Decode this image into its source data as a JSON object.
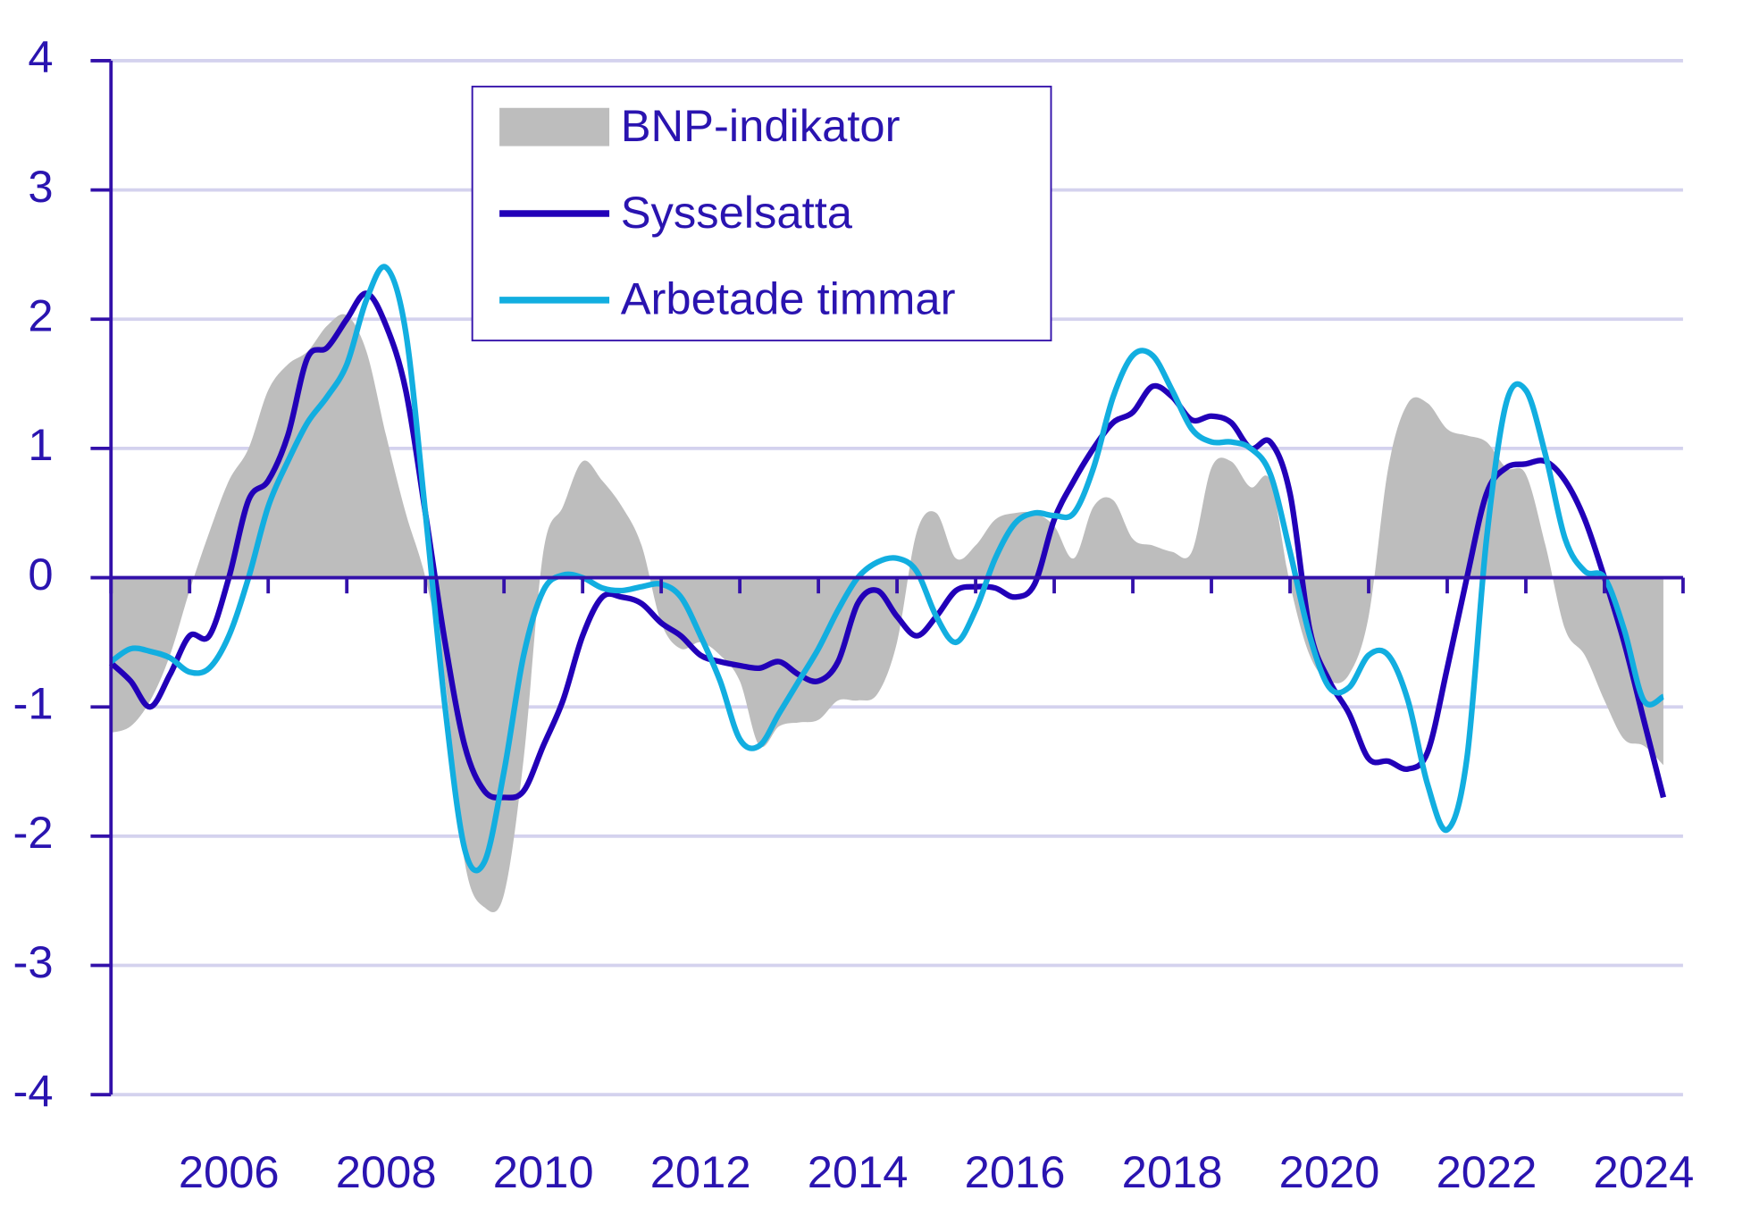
{
  "chart_data": {
    "type": "line",
    "x": [
      2005,
      2005.25,
      2005.5,
      2005.75,
      2006,
      2006.25,
      2006.5,
      2006.75,
      2007,
      2007.25,
      2007.5,
      2007.75,
      2008,
      2008.25,
      2008.5,
      2008.75,
      2009,
      2009.25,
      2009.5,
      2009.75,
      2010,
      2010.25,
      2010.5,
      2010.75,
      2011,
      2011.25,
      2011.5,
      2011.75,
      2012,
      2012.25,
      2012.5,
      2012.75,
      2013,
      2013.25,
      2013.5,
      2013.75,
      2014,
      2014.25,
      2014.5,
      2014.75,
      2015,
      2015.25,
      2015.5,
      2015.75,
      2016,
      2016.25,
      2016.5,
      2016.75,
      2017,
      2017.25,
      2017.5,
      2017.75,
      2018,
      2018.25,
      2018.5,
      2018.75,
      2019,
      2019.25,
      2019.5,
      2019.75,
      2020,
      2020.25,
      2020.5,
      2020.75,
      2021,
      2021.25,
      2021.5,
      2021.75,
      2022,
      2022.25,
      2022.5,
      2022.75,
      2023,
      2023.25,
      2023.5,
      2023.75,
      2024,
      2024.25,
      2024.5,
      2024.75
    ],
    "series": [
      {
        "name": "BNP-indikator",
        "color": "#bdbdbd",
        "kind": "area",
        "values": [
          -1.2,
          -1.15,
          -0.95,
          -0.6,
          -0.1,
          0.35,
          0.75,
          1.0,
          1.45,
          1.65,
          1.75,
          1.95,
          2.03,
          1.75,
          1.1,
          0.5,
          0.0,
          -0.8,
          -2.2,
          -2.55,
          -2.45,
          -1.4,
          0.2,
          0.55,
          0.9,
          0.75,
          0.55,
          0.25,
          -0.35,
          -0.55,
          -0.5,
          -0.6,
          -0.8,
          -1.3,
          -1.15,
          -1.12,
          -1.1,
          -0.95,
          -0.95,
          -0.9,
          -0.5,
          0.35,
          0.5,
          0.15,
          0.25,
          0.45,
          0.5,
          0.5,
          0.4,
          0.15,
          0.55,
          0.6,
          0.3,
          0.25,
          0.2,
          0.2,
          0.85,
          0.9,
          0.7,
          0.75,
          -0.05,
          -0.6,
          -0.8,
          -0.75,
          -0.3,
          0.85,
          1.35,
          1.35,
          1.15,
          1.1,
          1.05,
          0.85,
          0.8,
          0.25,
          -0.4,
          -0.6,
          -0.95,
          -1.25,
          -1.3,
          -1.45
        ]
      },
      {
        "name": "Sysselsatta",
        "color": "#2200b8",
        "kind": "line",
        "values": [
          -0.66,
          -0.8,
          -1.0,
          -0.75,
          -0.45,
          -0.45,
          0.0,
          0.6,
          0.75,
          1.1,
          1.7,
          1.78,
          2.0,
          2.2,
          1.95,
          1.45,
          0.5,
          -0.5,
          -1.3,
          -1.65,
          -1.7,
          -1.65,
          -1.3,
          -0.95,
          -0.45,
          -0.15,
          -0.15,
          -0.2,
          -0.35,
          -0.45,
          -0.6,
          -0.65,
          -0.68,
          -0.7,
          -0.65,
          -0.75,
          -0.8,
          -0.65,
          -0.2,
          -0.1,
          -0.3,
          -0.45,
          -0.3,
          -0.1,
          -0.07,
          -0.08,
          -0.15,
          -0.05,
          0.45,
          0.75,
          1.0,
          1.2,
          1.28,
          1.48,
          1.4,
          1.22,
          1.25,
          1.2,
          1.0,
          1.05,
          0.65,
          -0.4,
          -0.8,
          -1.05,
          -1.4,
          -1.42,
          -1.48,
          -1.35,
          -0.7,
          0.0,
          0.65,
          0.85,
          0.88,
          0.9,
          0.75,
          0.45,
          0.0,
          -0.5,
          -1.1,
          -1.7
        ]
      },
      {
        "name": "Arbetade timmar",
        "color": "#12aee0",
        "kind": "line",
        "values": [
          -0.65,
          -0.55,
          -0.57,
          -0.62,
          -0.73,
          -0.7,
          -0.45,
          0.0,
          0.55,
          0.9,
          1.2,
          1.4,
          1.65,
          2.15,
          2.4,
          1.9,
          0.5,
          -1.0,
          -2.1,
          -2.2,
          -1.5,
          -0.6,
          -0.1,
          0.02,
          0.0,
          -0.08,
          -0.1,
          -0.07,
          -0.05,
          -0.15,
          -0.45,
          -0.8,
          -1.25,
          -1.3,
          -1.05,
          -0.8,
          -0.55,
          -0.25,
          0.0,
          0.12,
          0.15,
          0.05,
          -0.3,
          -0.5,
          -0.25,
          0.15,
          0.42,
          0.5,
          0.48,
          0.5,
          0.85,
          1.4,
          1.72,
          1.72,
          1.45,
          1.15,
          1.05,
          1.05,
          1.0,
          0.8,
          0.2,
          -0.45,
          -0.85,
          -0.85,
          -0.6,
          -0.6,
          -0.95,
          -1.6,
          -1.95,
          -1.4,
          0.3,
          1.35,
          1.45,
          0.95,
          0.3,
          0.05,
          0.0,
          -0.4,
          -0.95,
          -0.92
        ]
      }
    ],
    "xlim": [
      2005,
      2025
    ],
    "xticks": [
      {
        "value": 2006.5,
        "label": "2006"
      },
      {
        "value": 2008.5,
        "label": "2008"
      },
      {
        "value": 2010.5,
        "label": "2010"
      },
      {
        "value": 2012.5,
        "label": "2012"
      },
      {
        "value": 2014.5,
        "label": "2014"
      },
      {
        "value": 2016.5,
        "label": "2016"
      },
      {
        "value": 2018.5,
        "label": "2018"
      },
      {
        "value": 2020.5,
        "label": "2020"
      },
      {
        "value": 2022.5,
        "label": "2022"
      },
      {
        "value": 2024.5,
        "label": "2024"
      }
    ],
    "xminor_ticks": [
      2005,
      2006,
      2007,
      2008,
      2009,
      2010,
      2011,
      2012,
      2013,
      2014,
      2015,
      2016,
      2017,
      2018,
      2019,
      2020,
      2021,
      2022,
      2023,
      2024,
      2025
    ],
    "ylim": [
      -4,
      4
    ],
    "yticks": [
      -4,
      -3,
      -2,
      -1,
      0,
      1,
      2,
      3,
      4
    ],
    "grid": true,
    "legend": "upper-center"
  }
}
